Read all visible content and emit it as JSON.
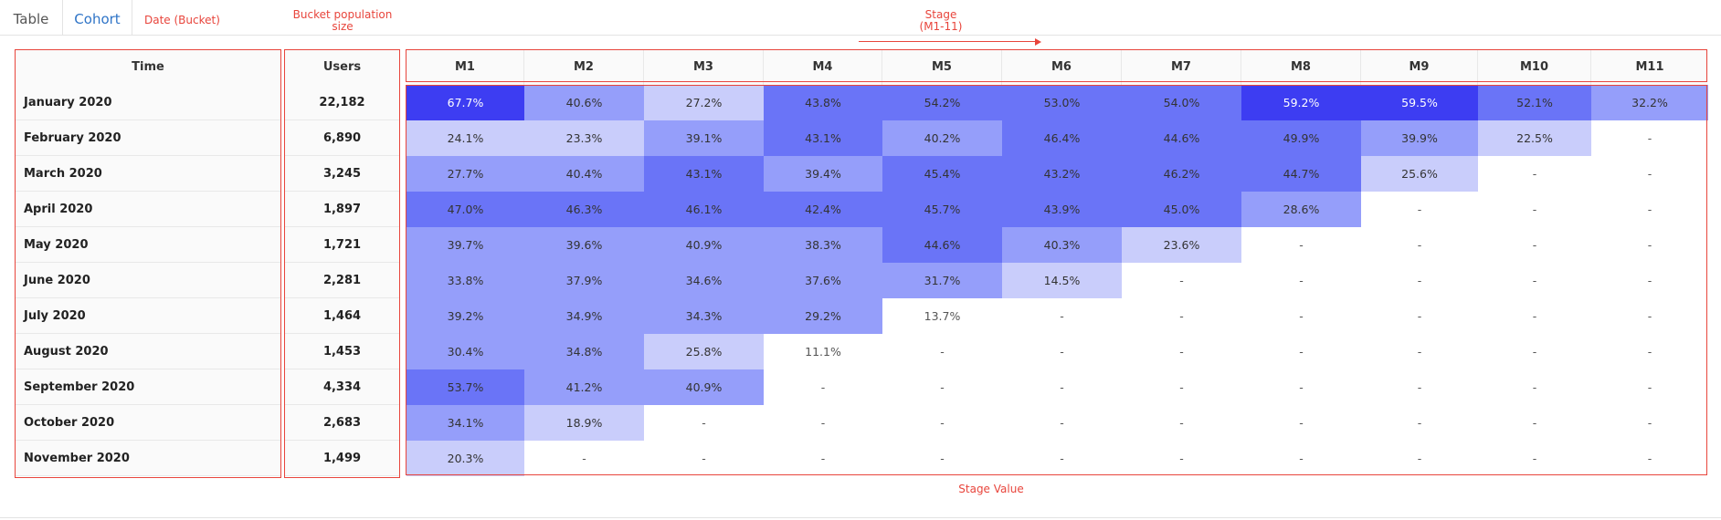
{
  "tabs": [
    {
      "label": "Table",
      "active": false
    },
    {
      "label": "Cohort",
      "active": true
    }
  ],
  "annotations": {
    "date_bucket": "Date (Bucket)",
    "bucket_population": [
      "Bucket population",
      "size"
    ],
    "stage": [
      "Stage",
      "(M1-11)"
    ],
    "stage_value": "Stage Value"
  },
  "table": {
    "time_header": "Time",
    "users_header": "Users",
    "stages": [
      "M1",
      "M2",
      "M3",
      "M4",
      "M5",
      "M6",
      "M7",
      "M8",
      "M9",
      "M10",
      "M11"
    ],
    "rows": [
      {
        "time": "January 2020",
        "users": "22,182",
        "values": [
          "67.7%",
          "40.6%",
          "27.2%",
          "43.8%",
          "54.2%",
          "53.0%",
          "54.0%",
          "59.2%",
          "59.5%",
          "52.1%",
          "32.2%"
        ]
      },
      {
        "time": "February 2020",
        "users": "6,890",
        "values": [
          "24.1%",
          "23.3%",
          "39.1%",
          "43.1%",
          "40.2%",
          "46.4%",
          "44.6%",
          "49.9%",
          "39.9%",
          "22.5%",
          "-"
        ]
      },
      {
        "time": "March 2020",
        "users": "3,245",
        "values": [
          "27.7%",
          "40.4%",
          "43.1%",
          "39.4%",
          "45.4%",
          "43.2%",
          "46.2%",
          "44.7%",
          "25.6%",
          "-",
          "-"
        ]
      },
      {
        "time": "April 2020",
        "users": "1,897",
        "values": [
          "47.0%",
          "46.3%",
          "46.1%",
          "42.4%",
          "45.7%",
          "43.9%",
          "45.0%",
          "28.6%",
          "-",
          "-",
          "-"
        ]
      },
      {
        "time": "May 2020",
        "users": "1,721",
        "values": [
          "39.7%",
          "39.6%",
          "40.9%",
          "38.3%",
          "44.6%",
          "40.3%",
          "23.6%",
          "-",
          "-",
          "-",
          "-"
        ]
      },
      {
        "time": "June 2020",
        "users": "2,281",
        "values": [
          "33.8%",
          "37.9%",
          "34.6%",
          "37.6%",
          "31.7%",
          "14.5%",
          "-",
          "-",
          "-",
          "-",
          "-"
        ]
      },
      {
        "time": "July 2020",
        "users": "1,464",
        "values": [
          "39.2%",
          "34.9%",
          "34.3%",
          "29.2%",
          "13.7%",
          "-",
          "-",
          "-",
          "-",
          "-",
          "-"
        ]
      },
      {
        "time": "August 2020",
        "users": "1,453",
        "values": [
          "30.4%",
          "34.8%",
          "25.8%",
          "11.1%",
          "-",
          "-",
          "-",
          "-",
          "-",
          "-",
          "-"
        ]
      },
      {
        "time": "September 2020",
        "users": "4,334",
        "values": [
          "53.7%",
          "41.2%",
          "40.9%",
          "-",
          "-",
          "-",
          "-",
          "-",
          "-",
          "-",
          "-"
        ]
      },
      {
        "time": "October 2020",
        "users": "2,683",
        "values": [
          "34.1%",
          "18.9%",
          "-",
          "-",
          "-",
          "-",
          "-",
          "-",
          "-",
          "-",
          "-"
        ]
      },
      {
        "time": "November 2020",
        "users": "1,499",
        "values": [
          "20.3%",
          "-",
          "-",
          "-",
          "-",
          "-",
          "-",
          "-",
          "-",
          "-",
          "-"
        ]
      }
    ]
  },
  "colors": {
    "level_1": "#c9cdfb",
    "level_2": "#959efa",
    "level_3": "#6a74f7",
    "level_4": "#3d3df2",
    "annotation": "#e8453c"
  }
}
